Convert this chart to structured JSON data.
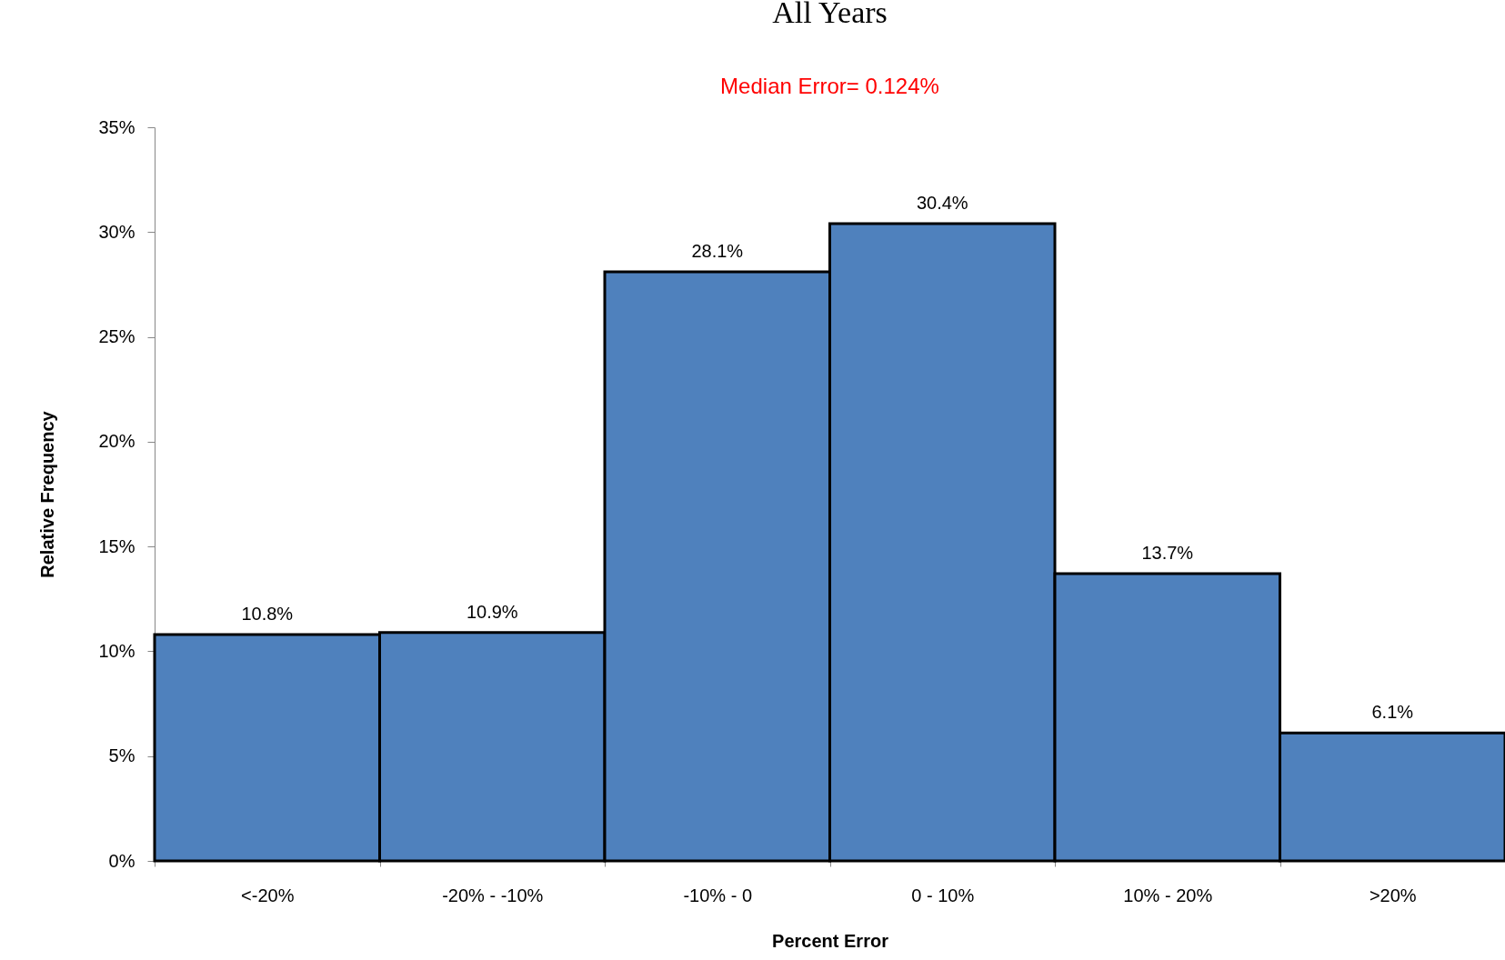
{
  "chart_data": {
    "type": "bar",
    "title": "All Years",
    "xlabel": "Percent Error",
    "ylabel": "Relative Frequency",
    "annotations": [
      "Median Error=  0.124%"
    ],
    "categories": [
      "<-20%",
      "-20% - -10%",
      "-10% - 0",
      "0 - 10%",
      "10% - 20%",
      ">20%"
    ],
    "values": [
      10.8,
      10.9,
      28.1,
      30.4,
      13.7,
      6.1
    ],
    "value_labels": [
      "10.8%",
      "10.9%",
      "28.1%",
      "30.4%",
      "13.7%",
      "6.1%"
    ],
    "color": "#4f81bd",
    "ylim": [
      0,
      35
    ],
    "yticks": [
      {
        "value": 0,
        "label": "0%"
      },
      {
        "value": 5,
        "label": "5%"
      },
      {
        "value": 10,
        "label": "10%"
      },
      {
        "value": 15,
        "label": "15%"
      },
      {
        "value": 20,
        "label": "20%"
      },
      {
        "value": 25,
        "label": "25%"
      },
      {
        "value": 30,
        "label": "30%"
      },
      {
        "value": 35,
        "label": "35%"
      }
    ],
    "grid": false
  }
}
